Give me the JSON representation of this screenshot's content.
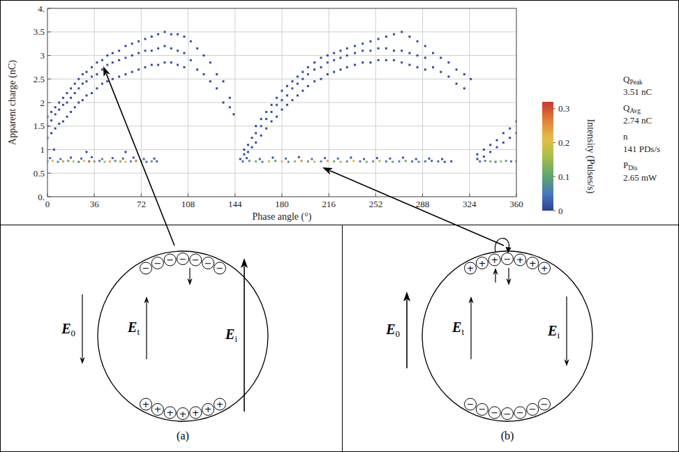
{
  "chart_data": {
    "type": "scatter",
    "x_label": "Phase angle (°)",
    "y_label": "Apparent charge (nC)",
    "xlim": [
      0,
      360
    ],
    "ylim": [
      0,
      4
    ],
    "xticks": [
      0,
      36,
      72,
      108,
      144,
      180,
      216,
      252,
      288,
      324,
      360
    ],
    "yticks": [
      {
        "value": 0,
        "label": "0."
      },
      0.5,
      1,
      1.5,
      2,
      2.5,
      3,
      3.5,
      {
        "value": 4,
        "label": "4."
      }
    ],
    "grid": true,
    "colorbar": {
      "label": "Intensity (Pulses/s)",
      "range": [
        0,
        0.32
      ],
      "ticks": [
        0,
        0.1,
        0.2,
        0.3
      ]
    },
    "points": [
      [
        0,
        1.25,
        0.01
      ],
      [
        0,
        1.5,
        0.01
      ],
      [
        0,
        1.7,
        0.01
      ],
      [
        3,
        1.35,
        0.01
      ],
      [
        3,
        1.62,
        0.01
      ],
      [
        3,
        1.8,
        0.01
      ],
      [
        6,
        1.45,
        0.01
      ],
      [
        6,
        1.75,
        0.02
      ],
      [
        6,
        1.9,
        0.01
      ],
      [
        9,
        1.55,
        0.01
      ],
      [
        9,
        1.85,
        0.01
      ],
      [
        9,
        2.0,
        0.01
      ],
      [
        12,
        1.6,
        0.01
      ],
      [
        12,
        1.95,
        0.01
      ],
      [
        12,
        2.1,
        0.01
      ],
      [
        15,
        1.7,
        0.01
      ],
      [
        15,
        2.0,
        0.02
      ],
      [
        15,
        2.2,
        0.01
      ],
      [
        18,
        1.8,
        0.01
      ],
      [
        18,
        2.1,
        0.01
      ],
      [
        18,
        2.3,
        0.01
      ],
      [
        21,
        1.9,
        0.01
      ],
      [
        21,
        2.2,
        0.01
      ],
      [
        21,
        2.4,
        0.01
      ],
      [
        24,
        2.0,
        0.01
      ],
      [
        24,
        2.3,
        0.02
      ],
      [
        24,
        2.5,
        0.01
      ],
      [
        27,
        2.05,
        0.01
      ],
      [
        27,
        2.4,
        0.01
      ],
      [
        27,
        2.6,
        0.01
      ],
      [
        30,
        2.15,
        0.01
      ],
      [
        30,
        2.45,
        0.01
      ],
      [
        30,
        2.65,
        0.01
      ],
      [
        34,
        2.2,
        0.01
      ],
      [
        34,
        2.55,
        0.02
      ],
      [
        34,
        2.75,
        0.01
      ],
      [
        38,
        2.3,
        0.01
      ],
      [
        38,
        2.6,
        0.01
      ],
      [
        38,
        2.85,
        0.01
      ],
      [
        42,
        2.4,
        0.01
      ],
      [
        42,
        2.7,
        0.01
      ],
      [
        42,
        2.9,
        0.01
      ],
      [
        46,
        2.45,
        0.01
      ],
      [
        46,
        2.8,
        0.02
      ],
      [
        46,
        3.0,
        0.01
      ],
      [
        50,
        2.5,
        0.01
      ],
      [
        50,
        2.85,
        0.01
      ],
      [
        50,
        3.05,
        0.01
      ],
      [
        55,
        2.55,
        0.01
      ],
      [
        55,
        2.9,
        0.01
      ],
      [
        55,
        3.1,
        0.01
      ],
      [
        60,
        2.6,
        0.01
      ],
      [
        60,
        2.95,
        0.02
      ],
      [
        60,
        3.2,
        0.01
      ],
      [
        65,
        2.65,
        0.01
      ],
      [
        65,
        3.0,
        0.01
      ],
      [
        65,
        3.25,
        0.01
      ],
      [
        70,
        2.7,
        0.01
      ],
      [
        70,
        3.05,
        0.01
      ],
      [
        70,
        3.3,
        0.01
      ],
      [
        75,
        2.75,
        0.01
      ],
      [
        75,
        3.1,
        0.02
      ],
      [
        75,
        3.35,
        0.01
      ],
      [
        80,
        2.8,
        0.01
      ],
      [
        80,
        3.1,
        0.01
      ],
      [
        80,
        3.4,
        0.01
      ],
      [
        85,
        2.8,
        0.01
      ],
      [
        85,
        3.15,
        0.01
      ],
      [
        85,
        3.45,
        0.01
      ],
      [
        90,
        2.85,
        0.01
      ],
      [
        90,
        3.2,
        0.01
      ],
      [
        90,
        3.5,
        0.01
      ],
      [
        95,
        2.85,
        0.01
      ],
      [
        95,
        3.15,
        0.01
      ],
      [
        95,
        3.45,
        0.01
      ],
      [
        100,
        2.8,
        0.01
      ],
      [
        100,
        3.1,
        0.01
      ],
      [
        100,
        3.45,
        0.01
      ],
      [
        105,
        2.75,
        0.01
      ],
      [
        105,
        3.05,
        0.01
      ],
      [
        105,
        3.4,
        0.01
      ],
      [
        110,
        2.9,
        0.01
      ],
      [
        110,
        3.3,
        0.01
      ],
      [
        115,
        2.7,
        0.01
      ],
      [
        115,
        3.15,
        0.01
      ],
      [
        120,
        2.6,
        0.01
      ],
      [
        120,
        3.0,
        0.01
      ],
      [
        125,
        2.45,
        0.01
      ],
      [
        125,
        2.85,
        0.01
      ],
      [
        130,
        2.3,
        0.01
      ],
      [
        130,
        2.6,
        0.01
      ],
      [
        135,
        2.0,
        0.01
      ],
      [
        135,
        2.45,
        0.01
      ],
      [
        140,
        1.9,
        0.01
      ],
      [
        140,
        2.1,
        0.01
      ],
      [
        143,
        1.75,
        0.01
      ],
      [
        5,
        1.0,
        0.01
      ],
      [
        30,
        0.95,
        0.01
      ],
      [
        60,
        0.95,
        0.01
      ],
      [
        148,
        0.8,
        0.01
      ],
      [
        151,
        0.9,
        0.01
      ],
      [
        151,
        1.0,
        0.01
      ],
      [
        154,
        0.95,
        0.01
      ],
      [
        154,
        1.1,
        0.01
      ],
      [
        157,
        1.05,
        0.01
      ],
      [
        157,
        1.25,
        0.01
      ],
      [
        160,
        1.15,
        0.01
      ],
      [
        160,
        1.35,
        0.01
      ],
      [
        160,
        1.5,
        0.01
      ],
      [
        164,
        1.3,
        0.01
      ],
      [
        164,
        1.5,
        0.02
      ],
      [
        164,
        1.65,
        0.01
      ],
      [
        168,
        1.45,
        0.01
      ],
      [
        168,
        1.65,
        0.01
      ],
      [
        168,
        1.8,
        0.01
      ],
      [
        172,
        1.6,
        0.01
      ],
      [
        172,
        1.8,
        0.01
      ],
      [
        172,
        1.95,
        0.01
      ],
      [
        176,
        1.7,
        0.01
      ],
      [
        176,
        1.95,
        0.02
      ],
      [
        176,
        2.1,
        0.01
      ],
      [
        180,
        1.85,
        0.01
      ],
      [
        180,
        2.05,
        0.01
      ],
      [
        180,
        2.25,
        0.01
      ],
      [
        184,
        1.95,
        0.01
      ],
      [
        184,
        2.15,
        0.01
      ],
      [
        184,
        2.35,
        0.01
      ],
      [
        188,
        2.05,
        0.01
      ],
      [
        188,
        2.3,
        0.02
      ],
      [
        188,
        2.45,
        0.01
      ],
      [
        192,
        2.15,
        0.01
      ],
      [
        192,
        2.4,
        0.01
      ],
      [
        192,
        2.55,
        0.01
      ],
      [
        196,
        2.25,
        0.01
      ],
      [
        196,
        2.5,
        0.01
      ],
      [
        196,
        2.65,
        0.01
      ],
      [
        200,
        2.35,
        0.01
      ],
      [
        200,
        2.6,
        0.02
      ],
      [
        200,
        2.75,
        0.01
      ],
      [
        205,
        2.45,
        0.01
      ],
      [
        205,
        2.7,
        0.01
      ],
      [
        205,
        2.85,
        0.01
      ],
      [
        210,
        2.5,
        0.01
      ],
      [
        210,
        2.75,
        0.01
      ],
      [
        210,
        2.95,
        0.01
      ],
      [
        215,
        2.6,
        0.01
      ],
      [
        215,
        2.85,
        0.02
      ],
      [
        215,
        3.0,
        0.01
      ],
      [
        220,
        2.65,
        0.01
      ],
      [
        220,
        2.9,
        0.01
      ],
      [
        220,
        3.05,
        0.01
      ],
      [
        225,
        2.7,
        0.01
      ],
      [
        225,
        2.95,
        0.01
      ],
      [
        225,
        3.1,
        0.01
      ],
      [
        230,
        2.75,
        0.01
      ],
      [
        230,
        3.0,
        0.02
      ],
      [
        230,
        3.15,
        0.01
      ],
      [
        236,
        2.8,
        0.01
      ],
      [
        236,
        3.05,
        0.01
      ],
      [
        236,
        3.2,
        0.01
      ],
      [
        242,
        2.85,
        0.01
      ],
      [
        242,
        3.1,
        0.01
      ],
      [
        242,
        3.25,
        0.01
      ],
      [
        248,
        2.85,
        0.01
      ],
      [
        248,
        3.1,
        0.02
      ],
      [
        248,
        3.3,
        0.01
      ],
      [
        254,
        2.9,
        0.01
      ],
      [
        254,
        3.15,
        0.01
      ],
      [
        254,
        3.35,
        0.01
      ],
      [
        260,
        2.9,
        0.01
      ],
      [
        260,
        3.15,
        0.01
      ],
      [
        260,
        3.4,
        0.01
      ],
      [
        266,
        2.9,
        0.01
      ],
      [
        266,
        3.1,
        0.01
      ],
      [
        266,
        3.45,
        0.01
      ],
      [
        272,
        2.85,
        0.01
      ],
      [
        272,
        3.1,
        0.01
      ],
      [
        272,
        3.5,
        0.01
      ],
      [
        278,
        2.8,
        0.01
      ],
      [
        278,
        3.05,
        0.01
      ],
      [
        278,
        3.4,
        0.01
      ],
      [
        284,
        2.75,
        0.01
      ],
      [
        284,
        3.0,
        0.01
      ],
      [
        284,
        3.3,
        0.01
      ],
      [
        290,
        2.7,
        0.01
      ],
      [
        290,
        2.95,
        0.01
      ],
      [
        290,
        3.2,
        0.01
      ],
      [
        296,
        2.75,
        0.01
      ],
      [
        296,
        3.05,
        0.01
      ],
      [
        302,
        2.65,
        0.01
      ],
      [
        302,
        2.95,
        0.01
      ],
      [
        308,
        2.55,
        0.01
      ],
      [
        308,
        2.85,
        0.01
      ],
      [
        314,
        2.4,
        0.01
      ],
      [
        314,
        2.7,
        0.01
      ],
      [
        320,
        2.3,
        0.01
      ],
      [
        320,
        2.6,
        0.01
      ],
      [
        325,
        2.5,
        0.01
      ],
      [
        330,
        0.8,
        0.01
      ],
      [
        330,
        0.9,
        0.01
      ],
      [
        335,
        0.85,
        0.01
      ],
      [
        335,
        1.0,
        0.01
      ],
      [
        340,
        0.95,
        0.01
      ],
      [
        340,
        1.1,
        0.01
      ],
      [
        345,
        1.05,
        0.01
      ],
      [
        345,
        1.2,
        0.01
      ],
      [
        350,
        1.15,
        0.01
      ],
      [
        350,
        1.35,
        0.01
      ],
      [
        355,
        1.25,
        0.01
      ],
      [
        355,
        1.45,
        0.01
      ],
      [
        360,
        1.35,
        0.01
      ],
      [
        360,
        1.6,
        0.01
      ],
      [
        0,
        0.75,
        0.12
      ],
      [
        4,
        0.76,
        0.2
      ],
      [
        8,
        0.74,
        0.08
      ],
      [
        12,
        0.75,
        0.25
      ],
      [
        16,
        0.76,
        0.1
      ],
      [
        20,
        0.75,
        0.18
      ],
      [
        24,
        0.74,
        0.06
      ],
      [
        28,
        0.76,
        0.22
      ],
      [
        32,
        0.75,
        0.3
      ],
      [
        36,
        0.75,
        0.12
      ],
      [
        40,
        0.76,
        0.05
      ],
      [
        44,
        0.74,
        0.16
      ],
      [
        48,
        0.75,
        0.24
      ],
      [
        52,
        0.76,
        0.09
      ],
      [
        56,
        0.75,
        0.14
      ],
      [
        60,
        0.74,
        0.2
      ],
      [
        64,
        0.75,
        0.07
      ],
      [
        68,
        0.76,
        0.28
      ],
      [
        72,
        0.75,
        0.11
      ],
      [
        76,
        0.74,
        0.04
      ],
      [
        80,
        0.75,
        0.08
      ],
      [
        84,
        0.75,
        0.03
      ],
      [
        2,
        0.82,
        0.03
      ],
      [
        10,
        0.8,
        0.05
      ],
      [
        18,
        0.83,
        0.02
      ],
      [
        26,
        0.81,
        0.04
      ],
      [
        34,
        0.84,
        0.02
      ],
      [
        42,
        0.8,
        0.06
      ],
      [
        50,
        0.82,
        0.03
      ],
      [
        58,
        0.81,
        0.04
      ],
      [
        66,
        0.83,
        0.02
      ],
      [
        74,
        0.8,
        0.03
      ],
      [
        82,
        0.81,
        0.02
      ],
      [
        150,
        0.75,
        0.04
      ],
      [
        155,
        0.76,
        0.08
      ],
      [
        160,
        0.75,
        0.12
      ],
      [
        165,
        0.74,
        0.06
      ],
      [
        170,
        0.75,
        0.18
      ],
      [
        175,
        0.76,
        0.1
      ],
      [
        180,
        0.75,
        0.22
      ],
      [
        185,
        0.74,
        0.08
      ],
      [
        190,
        0.75,
        0.14
      ],
      [
        195,
        0.76,
        0.26
      ],
      [
        200,
        0.75,
        0.1
      ],
      [
        205,
        0.74,
        0.18
      ],
      [
        210,
        0.75,
        0.07
      ],
      [
        215,
        0.76,
        0.24
      ],
      [
        220,
        0.75,
        0.12
      ],
      [
        225,
        0.74,
        0.16
      ],
      [
        230,
        0.75,
        0.09
      ],
      [
        235,
        0.76,
        0.2
      ],
      [
        240,
        0.75,
        0.06
      ],
      [
        245,
        0.74,
        0.13
      ],
      [
        250,
        0.75,
        0.08
      ],
      [
        255,
        0.76,
        0.17
      ],
      [
        260,
        0.75,
        0.05
      ],
      [
        265,
        0.74,
        0.1
      ],
      [
        270,
        0.75,
        0.07
      ],
      [
        275,
        0.76,
        0.12
      ],
      [
        280,
        0.75,
        0.04
      ],
      [
        285,
        0.74,
        0.08
      ],
      [
        290,
        0.75,
        0.05
      ],
      [
        295,
        0.76,
        0.03
      ],
      [
        300,
        0.75,
        0.04
      ],
      [
        305,
        0.74,
        0.02
      ],
      [
        310,
        0.75,
        0.02
      ],
      [
        153,
        0.82,
        0.02
      ],
      [
        163,
        0.8,
        0.03
      ],
      [
        173,
        0.83,
        0.02
      ],
      [
        183,
        0.81,
        0.04
      ],
      [
        193,
        0.84,
        0.02
      ],
      [
        203,
        0.8,
        0.05
      ],
      [
        213,
        0.82,
        0.03
      ],
      [
        223,
        0.81,
        0.04
      ],
      [
        233,
        0.83,
        0.02
      ],
      [
        243,
        0.8,
        0.03
      ],
      [
        253,
        0.82,
        0.02
      ],
      [
        263,
        0.81,
        0.03
      ],
      [
        273,
        0.83,
        0.02
      ],
      [
        283,
        0.8,
        0.02
      ],
      [
        293,
        0.81,
        0.02
      ],
      [
        303,
        0.8,
        0.01
      ],
      [
        332,
        0.75,
        0.04
      ],
      [
        336,
        0.76,
        0.08
      ],
      [
        340,
        0.75,
        0.12
      ],
      [
        344,
        0.74,
        0.06
      ],
      [
        348,
        0.75,
        0.15
      ],
      [
        352,
        0.76,
        0.09
      ],
      [
        356,
        0.75,
        0.05
      ],
      [
        360,
        0.75,
        0.04
      ]
    ]
  },
  "stats": [
    {
      "symbol": "Q",
      "subscript": "Peak",
      "value": "3.51 nC"
    },
    {
      "symbol": "Q",
      "subscript": "Avg",
      "value": "2.74 nC"
    },
    {
      "symbol": "n",
      "value": "141 PDs/s"
    },
    {
      "symbol": "P",
      "subscript": "Dis",
      "value": "2.65 mW"
    }
  ],
  "diagrams": [
    {
      "label": "(a)",
      "fields": [
        {
          "symbol": "E",
          "subscript": "0"
        },
        {
          "symbol": "E",
          "subscript": "t"
        },
        {
          "symbol": "E",
          "subscript": "i"
        }
      ],
      "top_charges": [
        "−",
        "−",
        "−",
        "−",
        "−",
        "−",
        "−"
      ],
      "bottom_charges": [
        "+",
        "+",
        "+",
        "+",
        "+",
        "+",
        "+"
      ]
    },
    {
      "label": "(b)",
      "fields": [
        {
          "symbol": "E",
          "subscript": "0"
        },
        {
          "symbol": "E",
          "subscript": "t"
        },
        {
          "symbol": "E",
          "subscript": "i"
        }
      ],
      "top_charges": [
        "+",
        "+",
        "+",
        "−",
        "+",
        "+",
        "+"
      ],
      "bottom_charges": [
        "−",
        "−",
        "−",
        "−",
        "−",
        "−",
        "−"
      ]
    }
  ]
}
